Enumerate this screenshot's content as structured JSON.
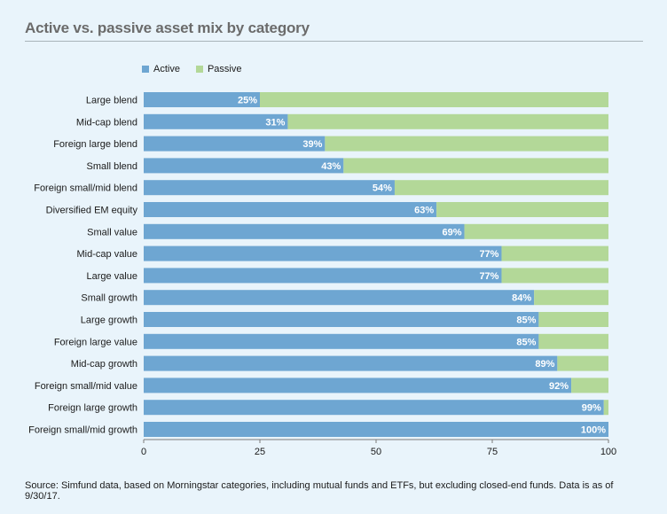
{
  "chart_data": {
    "type": "bar",
    "orientation": "horizontal",
    "stacked": true,
    "title": "Active vs. passive asset mix by category",
    "categories": [
      "Large blend",
      "Mid-cap blend",
      "Foreign large blend",
      "Small blend",
      "Foreign small/mid blend",
      "Diversified EM equity",
      "Small value",
      "Mid-cap value",
      "Large value",
      "Small growth",
      "Large growth",
      "Foreign large value",
      "Mid-cap growth",
      "Foreign small/mid value",
      "Foreign large growth",
      "Foreign small/mid growth"
    ],
    "series": [
      {
        "name": "Active",
        "color": "#6ea6d2",
        "values": [
          25,
          31,
          39,
          43,
          54,
          63,
          69,
          77,
          77,
          84,
          85,
          85,
          89,
          92,
          99,
          100
        ]
      },
      {
        "name": "Passive",
        "color": "#b3d898",
        "values": [
          75,
          69,
          61,
          57,
          46,
          37,
          31,
          23,
          23,
          16,
          15,
          15,
          11,
          8,
          1,
          0
        ]
      }
    ],
    "data_labels": [
      "25%",
      "31%",
      "39%",
      "43%",
      "54%",
      "63%",
      "69%",
      "77%",
      "77%",
      "84%",
      "85%",
      "85%",
      "89%",
      "92%",
      "99%",
      "100%"
    ],
    "xlim": [
      0,
      100
    ],
    "xticks": [
      "0",
      "25",
      "50",
      "75",
      "100"
    ],
    "xlabel": "",
    "ylabel": "",
    "legend_position": "top-left",
    "grid": false
  },
  "footnote": "Source: Simfund data, based on Morningstar categories, including mutual funds and ETFs, but excluding closed-end funds. Data is as of 9/30/17."
}
